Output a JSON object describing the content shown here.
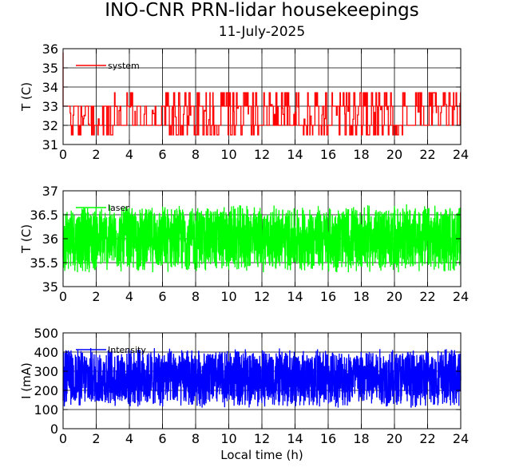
{
  "figure": {
    "title": "INO-CNR PRN-lidar housekeepings",
    "subtitle": "11-July-2025"
  },
  "chart_data": [
    {
      "type": "line",
      "panel": "top",
      "xlabel": "",
      "ylabel": "T (C)",
      "xlim": [
        0,
        24
      ],
      "ylim": [
        31,
        36
      ],
      "xticks": [
        0,
        2,
        4,
        6,
        8,
        10,
        12,
        14,
        16,
        18,
        20,
        22,
        24
      ],
      "yticks": [
        31,
        32,
        33,
        34,
        35,
        36
      ],
      "grid": true,
      "legend_position": "top-left",
      "series": [
        {
          "name": "system",
          "color": "#ff0000",
          "pattern": "two-level square wave switching between 32 and 33 C with occasional excursions",
          "segments": [
            {
              "x0": 0.0,
              "x1": 0.5,
              "low": 32,
              "high": 33
            },
            {
              "x0": 0.5,
              "x1": 3.0,
              "low": 31.5,
              "high": 33
            },
            {
              "x0": 3.0,
              "x1": 4.2,
              "low": 32,
              "high": 33.7
            },
            {
              "x0": 4.2,
              "x1": 6.2,
              "low": 32,
              "high": 33
            },
            {
              "x0": 6.2,
              "x1": 11.8,
              "low": 31.5,
              "high": 33.7
            },
            {
              "x0": 11.8,
              "x1": 14.5,
              "low": 32,
              "high": 33.7
            },
            {
              "x0": 14.5,
              "x1": 20.5,
              "low": 31.5,
              "high": 33.7
            },
            {
              "x0": 20.5,
              "x1": 24.0,
              "low": 32,
              "high": 33.7
            }
          ]
        }
      ]
    },
    {
      "type": "line",
      "panel": "middle",
      "xlabel": "",
      "ylabel": "T (C)",
      "xlim": [
        0,
        24
      ],
      "ylim": [
        35,
        37
      ],
      "xticks": [
        0,
        2,
        4,
        6,
        8,
        10,
        12,
        14,
        16,
        18,
        20,
        22,
        24
      ],
      "yticks": [
        35,
        35.5,
        36,
        36.5,
        37
      ],
      "grid": true,
      "legend_position": "top-left",
      "series": [
        {
          "name": "laser",
          "color": "#00ff00",
          "pattern": "dense oscillation around 36 C",
          "mean": 36.0,
          "min": 35.3,
          "max": 36.75
        }
      ]
    },
    {
      "type": "line",
      "panel": "bottom",
      "xlabel": "Local time (h)",
      "ylabel": "I (mA)",
      "xlim": [
        0,
        24
      ],
      "ylim": [
        0,
        500
      ],
      "xticks": [
        0,
        2,
        4,
        6,
        8,
        10,
        12,
        14,
        16,
        18,
        20,
        22,
        24
      ],
      "yticks": [
        0,
        100,
        200,
        300,
        400,
        500
      ],
      "grid": true,
      "legend_position": "top-left",
      "series": [
        {
          "name": "Intensity",
          "color": "#0000ff",
          "pattern": "dense oscillation filling band",
          "mean": 265,
          "min": 110,
          "max": 430
        }
      ]
    }
  ]
}
